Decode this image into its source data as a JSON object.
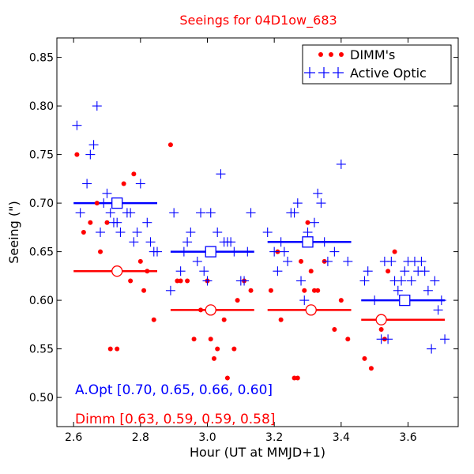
{
  "chart_data": {
    "type": "scatter",
    "title": "Seeings for 04D1ow_683",
    "xlabel": "Hour (UT at MMJD+1)",
    "ylabel": "Seeing (\")",
    "xlim": [
      2.55,
      3.75
    ],
    "ylim": [
      0.47,
      0.87
    ],
    "xticks": [
      2.6,
      2.8,
      3.0,
      3.2,
      3.4,
      3.6
    ],
    "xtick_labels": [
      "2.6",
      "2.8",
      "3.0",
      "3.2",
      "3.4",
      "3.6"
    ],
    "yticks": [
      0.5,
      0.55,
      0.6,
      0.65,
      0.7,
      0.75,
      0.8,
      0.85
    ],
    "ytick_labels": [
      "0.50",
      "0.55",
      "0.60",
      "0.65",
      "0.70",
      "0.75",
      "0.80",
      "0.85"
    ],
    "legend": {
      "position": "top-right",
      "entries": [
        "DIMM's",
        "Active Optic"
      ]
    },
    "colors": {
      "dimm": "#ff0000",
      "aopt": "#0000ff",
      "title": "#ff0000"
    },
    "series": [
      {
        "name": "DIMM's",
        "marker": "dot",
        "points": [
          [
            2.61,
            0.75
          ],
          [
            2.63,
            0.67
          ],
          [
            2.65,
            0.68
          ],
          [
            2.67,
            0.7
          ],
          [
            2.68,
            0.65
          ],
          [
            2.7,
            0.68
          ],
          [
            2.71,
            0.55
          ],
          [
            2.73,
            0.55
          ],
          [
            2.75,
            0.72
          ],
          [
            2.77,
            0.62
          ],
          [
            2.78,
            0.73
          ],
          [
            2.8,
            0.64
          ],
          [
            2.81,
            0.61
          ],
          [
            2.82,
            0.63
          ],
          [
            2.84,
            0.58
          ],
          [
            2.89,
            0.76
          ],
          [
            2.91,
            0.62
          ],
          [
            2.92,
            0.62
          ],
          [
            2.94,
            0.62
          ],
          [
            2.96,
            0.56
          ],
          [
            2.98,
            0.59
          ],
          [
            3.0,
            0.62
          ],
          [
            3.01,
            0.56
          ],
          [
            3.02,
            0.54
          ],
          [
            3.03,
            0.55
          ],
          [
            3.05,
            0.58
          ],
          [
            3.06,
            0.52
          ],
          [
            3.08,
            0.55
          ],
          [
            3.09,
            0.6
          ],
          [
            3.11,
            0.62
          ],
          [
            3.13,
            0.61
          ],
          [
            3.19,
            0.61
          ],
          [
            3.21,
            0.65
          ],
          [
            3.22,
            0.58
          ],
          [
            3.26,
            0.52
          ],
          [
            3.27,
            0.52
          ],
          [
            3.28,
            0.64
          ],
          [
            3.29,
            0.61
          ],
          [
            3.3,
            0.68
          ],
          [
            3.31,
            0.63
          ],
          [
            3.32,
            0.61
          ],
          [
            3.33,
            0.61
          ],
          [
            3.35,
            0.64
          ],
          [
            3.38,
            0.57
          ],
          [
            3.4,
            0.6
          ],
          [
            3.42,
            0.56
          ],
          [
            3.47,
            0.54
          ],
          [
            3.49,
            0.53
          ],
          [
            3.52,
            0.57
          ],
          [
            3.53,
            0.56
          ],
          [
            3.54,
            0.63
          ],
          [
            3.56,
            0.65
          ]
        ]
      },
      {
        "name": "Active Optic",
        "marker": "plus",
        "points": [
          [
            2.61,
            0.78
          ],
          [
            2.62,
            0.69
          ],
          [
            2.64,
            0.72
          ],
          [
            2.65,
            0.75
          ],
          [
            2.66,
            0.76
          ],
          [
            2.67,
            0.8
          ],
          [
            2.68,
            0.67
          ],
          [
            2.69,
            0.7
          ],
          [
            2.7,
            0.71
          ],
          [
            2.71,
            0.69
          ],
          [
            2.72,
            0.68
          ],
          [
            2.73,
            0.68
          ],
          [
            2.74,
            0.67
          ],
          [
            2.76,
            0.69
          ],
          [
            2.77,
            0.69
          ],
          [
            2.78,
            0.66
          ],
          [
            2.79,
            0.67
          ],
          [
            2.8,
            0.72
          ],
          [
            2.82,
            0.68
          ],
          [
            2.83,
            0.66
          ],
          [
            2.84,
            0.65
          ],
          [
            2.85,
            0.65
          ],
          [
            2.89,
            0.61
          ],
          [
            2.9,
            0.69
          ],
          [
            2.92,
            0.63
          ],
          [
            2.93,
            0.65
          ],
          [
            2.94,
            0.66
          ],
          [
            2.95,
            0.67
          ],
          [
            2.97,
            0.64
          ],
          [
            2.98,
            0.69
          ],
          [
            2.99,
            0.63
          ],
          [
            3.0,
            0.62
          ],
          [
            3.01,
            0.69
          ],
          [
            3.02,
            0.65
          ],
          [
            3.03,
            0.67
          ],
          [
            3.04,
            0.73
          ],
          [
            3.05,
            0.66
          ],
          [
            3.06,
            0.66
          ],
          [
            3.07,
            0.66
          ],
          [
            3.08,
            0.65
          ],
          [
            3.1,
            0.62
          ],
          [
            3.11,
            0.62
          ],
          [
            3.12,
            0.65
          ],
          [
            3.13,
            0.69
          ],
          [
            3.18,
            0.67
          ],
          [
            3.2,
            0.65
          ],
          [
            3.21,
            0.63
          ],
          [
            3.22,
            0.66
          ],
          [
            3.23,
            0.65
          ],
          [
            3.24,
            0.64
          ],
          [
            3.25,
            0.69
          ],
          [
            3.26,
            0.69
          ],
          [
            3.27,
            0.7
          ],
          [
            3.28,
            0.62
          ],
          [
            3.29,
            0.6
          ],
          [
            3.3,
            0.67
          ],
          [
            3.31,
            0.66
          ],
          [
            3.32,
            0.68
          ],
          [
            3.33,
            0.71
          ],
          [
            3.34,
            0.7
          ],
          [
            3.35,
            0.66
          ],
          [
            3.36,
            0.64
          ],
          [
            3.38,
            0.65
          ],
          [
            3.4,
            0.74
          ],
          [
            3.42,
            0.64
          ],
          [
            3.47,
            0.62
          ],
          [
            3.48,
            0.63
          ],
          [
            3.5,
            0.6
          ],
          [
            3.52,
            0.56
          ],
          [
            3.53,
            0.64
          ],
          [
            3.54,
            0.56
          ],
          [
            3.55,
            0.64
          ],
          [
            3.56,
            0.62
          ],
          [
            3.57,
            0.61
          ],
          [
            3.58,
            0.62
          ],
          [
            3.59,
            0.63
          ],
          [
            3.6,
            0.64
          ],
          [
            3.61,
            0.62
          ],
          [
            3.62,
            0.64
          ],
          [
            3.63,
            0.63
          ],
          [
            3.64,
            0.64
          ],
          [
            3.65,
            0.63
          ],
          [
            3.66,
            0.61
          ],
          [
            3.67,
            0.55
          ],
          [
            3.68,
            0.62
          ],
          [
            3.69,
            0.59
          ],
          [
            3.7,
            0.6
          ],
          [
            3.71,
            0.56
          ]
        ]
      }
    ],
    "averages": {
      "aopt": [
        {
          "x_start": 2.6,
          "x_end": 2.85,
          "marker_x": 2.73,
          "value": 0.7
        },
        {
          "x_start": 2.89,
          "x_end": 3.14,
          "marker_x": 3.01,
          "value": 0.65
        },
        {
          "x_start": 3.18,
          "x_end": 3.43,
          "marker_x": 3.3,
          "value": 0.66
        },
        {
          "x_start": 3.46,
          "x_end": 3.71,
          "marker_x": 3.59,
          "value": 0.6
        }
      ],
      "dimm": [
        {
          "x_start": 2.6,
          "x_end": 2.85,
          "marker_x": 2.73,
          "value": 0.63
        },
        {
          "x_start": 2.89,
          "x_end": 3.14,
          "marker_x": 3.01,
          "value": 0.59
        },
        {
          "x_start": 3.18,
          "x_end": 3.43,
          "marker_x": 3.31,
          "value": 0.59
        },
        {
          "x_start": 3.46,
          "x_end": 3.71,
          "marker_x": 3.52,
          "value": 0.58
        }
      ]
    },
    "annotations": {
      "aopt": "A.Opt [0.70, 0.65, 0.66, 0.60]",
      "dimm": "Dimm [0.63, 0.59, 0.59, 0.58]"
    }
  }
}
